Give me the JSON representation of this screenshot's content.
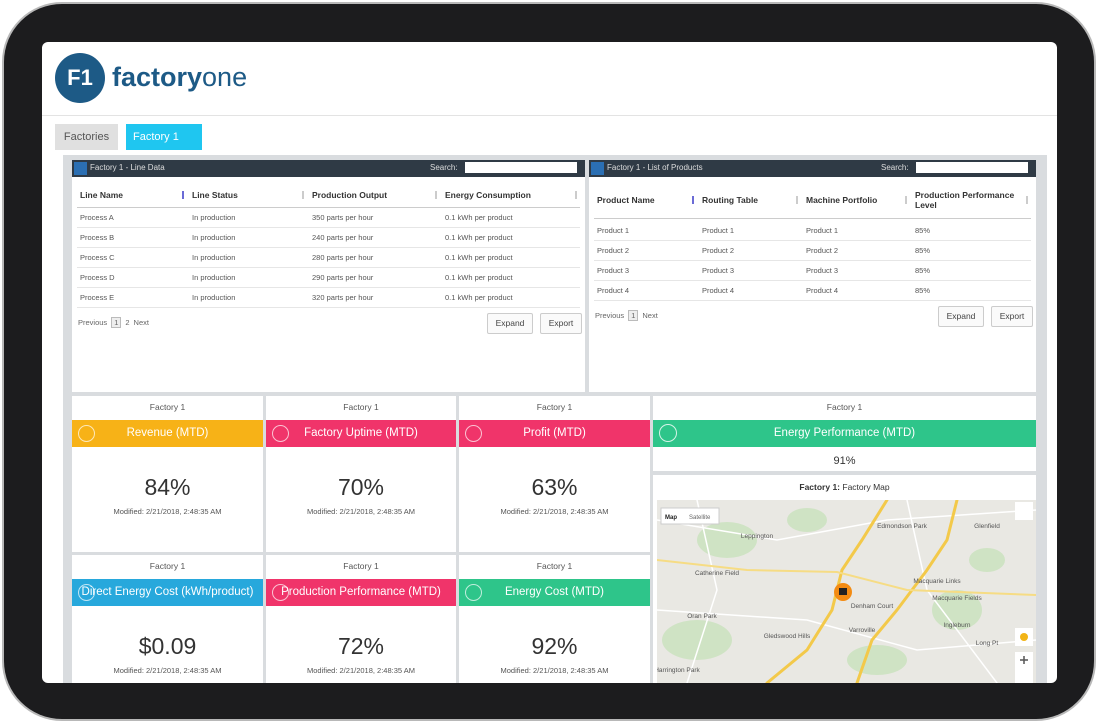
{
  "logo": {
    "mark": "F1",
    "brand": "factory",
    "brand_suffix": "one"
  },
  "tabs": [
    "Factories",
    "Factory 1"
  ],
  "line_data": {
    "title": "Factory 1 - Line Data",
    "search_label": "Search:",
    "columns": [
      "Line Name",
      "Line Status",
      "Production Output",
      "Energy Consumption"
    ],
    "rows": [
      [
        "Process A",
        "In production",
        "350 parts per hour",
        "0.1 kWh per product"
      ],
      [
        "Process B",
        "In production",
        "240 parts per hour",
        "0.1 kWh per product"
      ],
      [
        "Process C",
        "In production",
        "280 parts per hour",
        "0.1 kWh per product"
      ],
      [
        "Process D",
        "In production",
        "290 parts per hour",
        "0.1 kWh per product"
      ],
      [
        "Process E",
        "In production",
        "320 parts per hour",
        "0.1 kWh per product"
      ]
    ],
    "pager": {
      "previous": "Previous",
      "pages": [
        "1",
        "2"
      ],
      "next": "Next"
    },
    "buttons": [
      "Expand",
      "Export"
    ]
  },
  "products": {
    "title": "Factory 1 - List of Products",
    "search_label": "Search:",
    "columns": [
      "Product Name",
      "Routing Table",
      "Machine Portfolio",
      "Production Performance Level"
    ],
    "rows": [
      [
        "Product 1",
        "Product 1",
        "Product 1",
        "85%"
      ],
      [
        "Product 2",
        "Product 2",
        "Product 2",
        "85%"
      ],
      [
        "Product 3",
        "Product 3",
        "Product 3",
        "85%"
      ],
      [
        "Product 4",
        "Product 4",
        "Product 4",
        "85%"
      ]
    ],
    "pager": {
      "previous": "Previous",
      "pages": [
        "1"
      ],
      "next": "Next"
    },
    "buttons": [
      "Expand",
      "Export"
    ]
  },
  "kpis": [
    {
      "factory": "Factory 1",
      "title": "Revenue (MTD)",
      "value": "84%",
      "modified": "Modified: 2/21/2018, 2:48:35 AM",
      "color": "#f7b217"
    },
    {
      "factory": "Factory 1",
      "title": "Factory Uptime (MTD)",
      "value": "70%",
      "modified": "Modified: 2/21/2018, 2:48:35 AM",
      "color": "#f0346a"
    },
    {
      "factory": "Factory 1",
      "title": "Profit (MTD)",
      "value": "63%",
      "modified": "Modified: 2/21/2018, 2:48:35 AM",
      "color": "#f0346a"
    },
    {
      "factory": "Factory 1",
      "title": "Direct Energy Cost (kWh/product)",
      "value": "$0.09",
      "modified": "Modified: 2/21/2018, 2:48:35 AM",
      "color": "#27a8dc"
    },
    {
      "factory": "Factory 1",
      "title": "Production Performance (MTD)",
      "value": "72%",
      "modified": "Modified: 2/21/2018, 2:48:35 AM",
      "color": "#f0346a"
    },
    {
      "factory": "Factory 1",
      "title": "Energy Cost (MTD)",
      "value": "92%",
      "modified": "Modified: 2/21/2018, 2:48:35 AM",
      "color": "#2ec58a"
    }
  ],
  "energy": {
    "factory": "Factory 1",
    "title": "Energy Performance (MTD)",
    "value": "91%",
    "color": "#2ec58a"
  },
  "map": {
    "title_bold": "Factory 1:",
    "title": "Factory Map",
    "buttons": [
      "Map",
      "Satellite"
    ],
    "places": [
      "Leppington",
      "Edmondson Park",
      "Glenfield",
      "Catherine Field",
      "Oran Park",
      "Denham Court",
      "Macquarie Links",
      "Macquarie Fields",
      "Varroville",
      "Ingleburn",
      "Gledswood Hills",
      "Harrington Park",
      "Long Pt"
    ]
  }
}
